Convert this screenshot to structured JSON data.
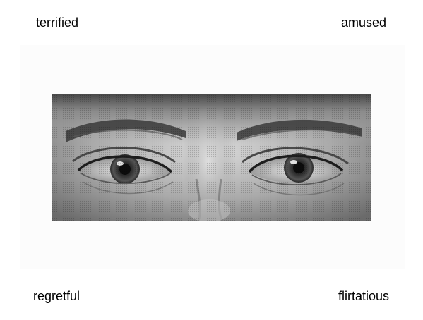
{
  "task": {
    "options": {
      "top_left": "terrified",
      "top_right": "amused",
      "bottom_left": "regretful",
      "bottom_right": "flirtatious"
    },
    "photo": {
      "subject": "eyes-region-photo",
      "style": "grayscale halftone"
    }
  },
  "colors": {
    "background": "#ffffff",
    "text": "#000000",
    "photo_dark": "#2a2a2a",
    "photo_mid": "#8a8a8a",
    "photo_light": "#d6d6d6"
  }
}
